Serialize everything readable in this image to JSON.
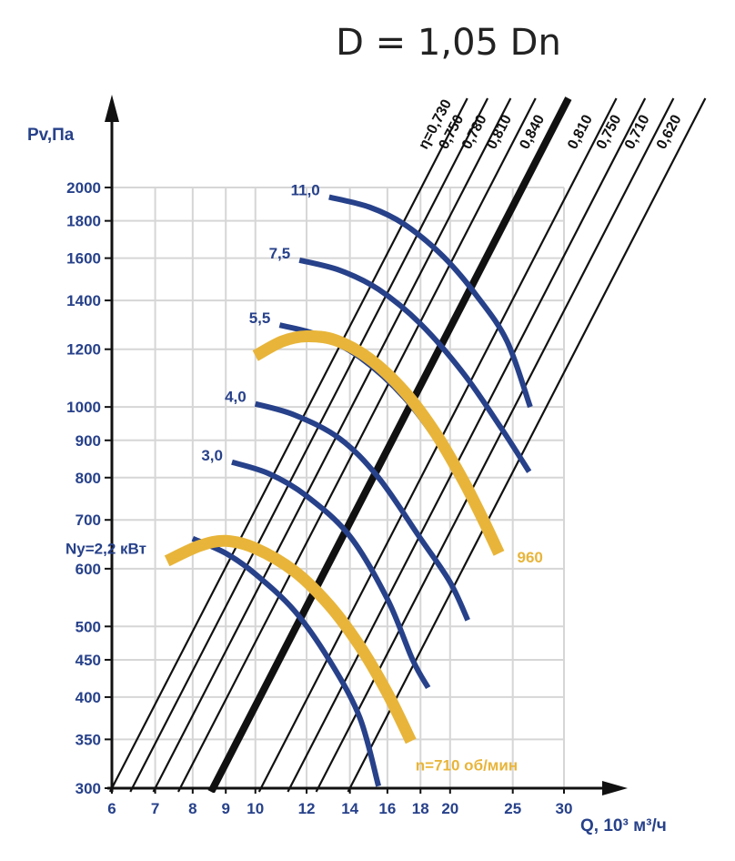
{
  "chart_data": {
    "type": "line",
    "title": "D = 1,05 Dn",
    "xlabel": "Q, 10³ м³/ч",
    "ylabel": "Pv,Па",
    "xscale": "log",
    "yscale": "log",
    "xlim": [
      6,
      30
    ],
    "ylim": [
      300,
      2000
    ],
    "x_ticks": [
      6,
      7,
      8,
      9,
      10,
      12,
      14,
      16,
      18,
      20,
      25,
      30
    ],
    "y_ticks": [
      300,
      350,
      400,
      450,
      500,
      600,
      700,
      800,
      900,
      1000,
      1200,
      1400,
      1600,
      1800,
      2000
    ],
    "colors": {
      "power": "#27418a",
      "speed": "#e8b53a",
      "efficiency": "#111111",
      "grid": "#d6d6d6",
      "axis": "#111111"
    },
    "efficiency_lines": [
      {
        "label": "η=0,730",
        "x_at_ylim_min": 6.0,
        "bold": false
      },
      {
        "label": "0,750",
        "x_at_ylim_min": 6.45,
        "bold": false
      },
      {
        "label": "0,780",
        "x_at_ylim_min": 7.0,
        "bold": false
      },
      {
        "label": "0,810",
        "x_at_ylim_min": 7.65,
        "bold": false
      },
      {
        "label": "0,840",
        "x_at_ylim_min": 8.6,
        "bold": true
      },
      {
        "label": "0,810",
        "x_at_ylim_min": 10.2,
        "bold": false
      },
      {
        "label": "0,750",
        "x_at_ylim_min": 11.3,
        "bold": false
      },
      {
        "label": "0,710",
        "x_at_ylim_min": 12.5,
        "bold": false
      },
      {
        "label": "0,620",
        "x_at_ylim_min": 14.0,
        "bold": false
      }
    ],
    "power_curves": [
      {
        "label": "Ny=2,2 кВт",
        "points": [
          [
            8.0,
            660
          ],
          [
            9.0,
            630
          ],
          [
            10.0,
            590
          ],
          [
            11.5,
            525
          ],
          [
            13.0,
            450
          ],
          [
            14.5,
            375
          ],
          [
            15.5,
            302
          ]
        ]
      },
      {
        "label": "3,0",
        "points": [
          [
            9.2,
            840
          ],
          [
            10.5,
            810
          ],
          [
            12.0,
            755
          ],
          [
            14.0,
            665
          ],
          [
            16.0,
            545
          ],
          [
            17.5,
            450
          ],
          [
            18.5,
            412
          ]
        ]
      },
      {
        "label": "4,0",
        "points": [
          [
            10.0,
            1010
          ],
          [
            11.5,
            975
          ],
          [
            13.5,
            905
          ],
          [
            15.5,
            800
          ],
          [
            18.0,
            660
          ],
          [
            20.0,
            575
          ],
          [
            21.3,
            510
          ]
        ]
      },
      {
        "label": "5,5",
        "points": [
          [
            10.9,
            1295
          ],
          [
            12.5,
            1255
          ],
          [
            14.5,
            1170
          ],
          [
            17.0,
            1030
          ],
          [
            19.5,
            875
          ],
          [
            22.0,
            730
          ],
          [
            23.5,
            645
          ]
        ]
      },
      {
        "label": "7,5",
        "points": [
          [
            11.7,
            1590
          ],
          [
            13.5,
            1540
          ],
          [
            15.5,
            1450
          ],
          [
            18.0,
            1300
          ],
          [
            21.0,
            1110
          ],
          [
            24.0,
            935
          ],
          [
            26.5,
            815
          ]
        ]
      },
      {
        "label": "11,0",
        "points": [
          [
            13.0,
            1940
          ],
          [
            15.0,
            1880
          ],
          [
            17.0,
            1780
          ],
          [
            19.5,
            1610
          ],
          [
            22.0,
            1420
          ],
          [
            24.5,
            1230
          ],
          [
            26.6,
            1000
          ]
        ]
      }
    ],
    "speed_curves": [
      {
        "label": "n=710 об/мин",
        "points": [
          [
            7.3,
            615
          ],
          [
            8.2,
            645
          ],
          [
            9.0,
            655
          ],
          [
            10.0,
            640
          ],
          [
            11.5,
            595
          ],
          [
            13.0,
            535
          ],
          [
            14.5,
            470
          ],
          [
            16.0,
            405
          ],
          [
            17.4,
            348
          ]
        ]
      },
      {
        "label": "960",
        "points": [
          [
            10.0,
            1175
          ],
          [
            11.0,
            1230
          ],
          [
            12.0,
            1250
          ],
          [
            13.3,
            1235
          ],
          [
            15.0,
            1165
          ],
          [
            17.0,
            1050
          ],
          [
            19.0,
            920
          ],
          [
            21.0,
            790
          ],
          [
            22.5,
            700
          ],
          [
            23.8,
            630
          ]
        ]
      }
    ]
  }
}
